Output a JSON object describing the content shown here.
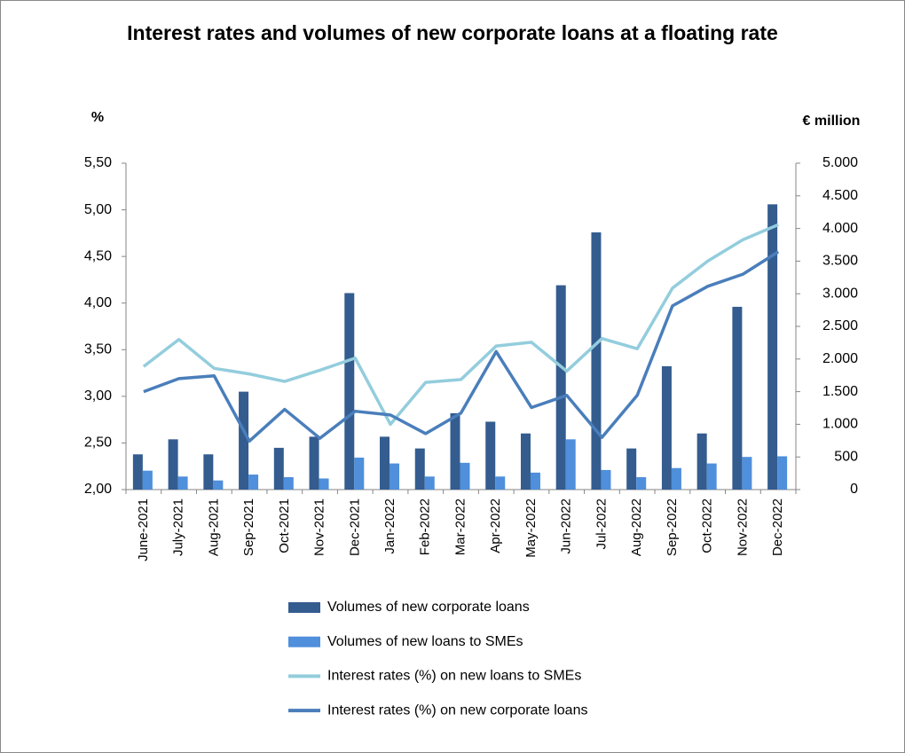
{
  "chart_data": {
    "type": "combo",
    "title": "Interest rates and volumes of new corporate loans at a floating rate",
    "ylabel": "%",
    "y2label": "€ million",
    "categories": [
      "June-2021",
      "July-2021",
      "Aug-2021",
      "Sep-2021",
      "Oct-2021",
      "Nov-2021",
      "Dec-2021",
      "Jan-2022",
      "Feb-2022",
      "Mar-2022",
      "Apr-2022",
      "May-2022",
      "Jun-2022",
      "Jul-2022",
      "Aug-2022",
      "Sep-2022",
      "Oct-2022",
      "Nov-2022",
      "Dec-2022"
    ],
    "ylim": [
      2,
      5.5
    ],
    "yticks": [
      {
        "value": 2,
        "label": "2,00"
      },
      {
        "value": 2.5,
        "label": "2,50"
      },
      {
        "value": 3,
        "label": "3,00"
      },
      {
        "value": 3.5,
        "label": "3,50"
      },
      {
        "value": 4,
        "label": "4,00"
      },
      {
        "value": 4.5,
        "label": "4,50"
      },
      {
        "value": 5,
        "label": "5,00"
      },
      {
        "value": 5.5,
        "label": "5,50"
      }
    ],
    "y2lim": [
      0,
      5000
    ],
    "y2ticks": [
      0,
      500,
      {
        "value": 1000,
        "label": "1.000"
      },
      {
        "value": 1500,
        "label": "1.500"
      },
      {
        "value": 2000,
        "label": "2.000"
      },
      {
        "value": 2500,
        "label": "2.500"
      },
      {
        "value": 3000,
        "label": "3.000"
      },
      {
        "value": 3500,
        "label": "3.500"
      },
      {
        "value": 4000,
        "label": "4.000"
      },
      {
        "value": 4500,
        "label": "4.500"
      },
      {
        "value": 5000,
        "label": "5.000"
      }
    ],
    "series": [
      {
        "name": "Volumes of new corporate loans",
        "type": "bar",
        "axis": "y2",
        "color": "#345c8f",
        "values": [
          540,
          770,
          540,
          1500,
          640,
          810,
          3010,
          810,
          630,
          1170,
          1040,
          860,
          3130,
          3940,
          630,
          1890,
          860,
          2800,
          4370
        ]
      },
      {
        "name": "Volumes of new loans to SMEs",
        "type": "bar",
        "axis": "y2",
        "color": "#4f8fdb",
        "values": [
          290,
          200,
          140,
          230,
          190,
          170,
          490,
          400,
          200,
          410,
          200,
          260,
          770,
          300,
          190,
          330,
          400,
          500,
          510
        ]
      },
      {
        "name": "Interest rates (%) on new loans to SMEs",
        "type": "line",
        "color": "#93cddd",
        "values": [
          3.32,
          3.61,
          3.3,
          3.24,
          3.16,
          3.28,
          3.41,
          2.7,
          3.15,
          3.18,
          3.54,
          3.58,
          3.27,
          3.62,
          3.51,
          4.16,
          4.45,
          4.68,
          4.84
        ]
      },
      {
        "name": "Interest rates (%) on new corporate loans",
        "type": "line",
        "color": "#4a7ebb",
        "values": [
          3.05,
          3.19,
          3.22,
          2.52,
          2.86,
          2.55,
          2.84,
          2.8,
          2.6,
          2.82,
          3.48,
          2.88,
          3.01,
          2.56,
          3.01,
          3.97,
          4.18,
          4.31,
          4.55
        ]
      }
    ]
  }
}
